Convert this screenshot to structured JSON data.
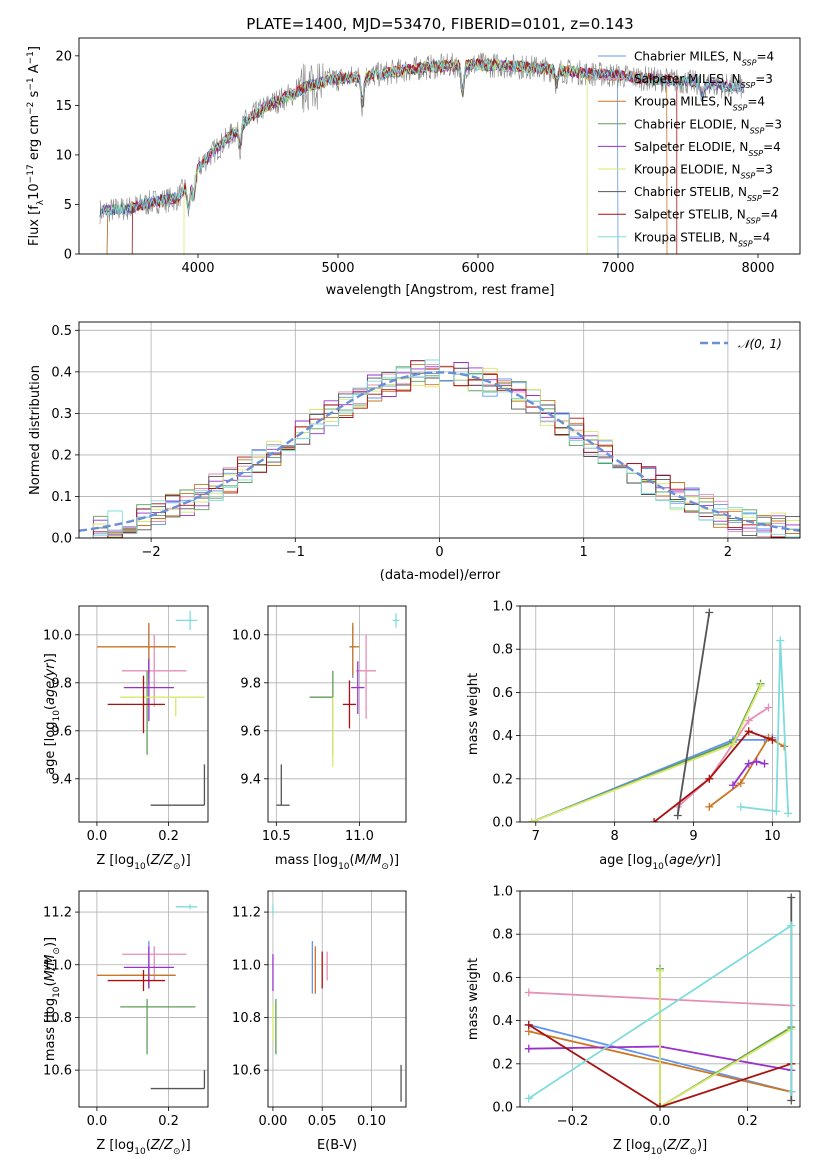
{
  "colors": {
    "chabrier_miles": "#6495ed",
    "salpeter_miles": "#e58fb7",
    "kroupa_miles": "#cc7722",
    "chabrier_elodie": "#5f9e57",
    "salpeter_elodie": "#9932cc",
    "kroupa_elodie": "#d7e86a",
    "chabrier_stelib": "#555555",
    "salpeter_stelib": "#aa1111",
    "kroupa_stelib": "#7fdcdc",
    "normal": "#6a8fd6",
    "grid": "#b0b0b0"
  },
  "chart_data": [
    {
      "id": "spectrum",
      "type": "line",
      "title": "PLATE=1400, MJD=53470, FIBERID=0101, z=0.143",
      "xlabel": "wavelength [Angstrom, rest frame]",
      "ylabel": "Flux [f_λ10^-17 erg cm^-2 s^-1 A^-1]",
      "xlim": [
        3150,
        8300
      ],
      "ylim": [
        0,
        21.8
      ],
      "xticks": [
        4000,
        5000,
        6000,
        7000,
        8000
      ],
      "yticks": [
        0,
        5,
        10,
        15,
        20
      ],
      "grid": false,
      "legend_position": "top-right",
      "legend": [
        {
          "name": "Chabrier MILES",
          "nssp": "4",
          "color": "chabrier_miles"
        },
        {
          "name": "Salpeter MILES",
          "nssp": "3",
          "color": "salpeter_miles"
        },
        {
          "name": "Kroupa MILES",
          "nssp": "4",
          "color": "kroupa_miles"
        },
        {
          "name": "Chabrier ELODIE",
          "nssp": "3",
          "color": "chabrier_elodie"
        },
        {
          "name": "Salpeter ELODIE",
          "nssp": "4",
          "color": "salpeter_elodie"
        },
        {
          "name": "Kroupa ELODIE",
          "nssp": "3",
          "color": "kroupa_elodie"
        },
        {
          "name": "Chabrier STELIB",
          "nssp": "2",
          "color": "chabrier_stelib"
        },
        {
          "name": "Salpeter STELIB",
          "nssp": "4",
          "color": "salpeter_stelib"
        },
        {
          "name": "Kroupa STELIB",
          "nssp": "4",
          "color": "kroupa_stelib"
        }
      ],
      "continuum": {
        "x": [
          3300,
          3500,
          3700,
          3850,
          3950,
          4050,
          4200,
          4350,
          4500,
          4650,
          4800,
          4950,
          5100,
          5250,
          5400,
          5600,
          5800,
          6000,
          6200,
          6400,
          6600,
          6800,
          7000,
          7200,
          7400,
          7600,
          7800,
          7900
        ],
        "y": [
          4.3,
          4.6,
          5.3,
          5.6,
          7.5,
          9.5,
          11.5,
          13.5,
          15.0,
          16.0,
          17.0,
          17.6,
          17.8,
          18.0,
          18.4,
          18.8,
          19.0,
          19.1,
          19.0,
          18.8,
          18.5,
          18.2,
          18.0,
          17.7,
          17.5,
          17.2,
          16.9,
          16.8
        ]
      },
      "absorption_features": [
        {
          "x": 5175,
          "depth": 3
        },
        {
          "x": 5890,
          "depth": 3
        },
        {
          "x": 4300,
          "depth": 2
        },
        {
          "x": 3933,
          "depth": 3
        },
        {
          "x": 3968,
          "depth": 2.5
        },
        {
          "x": 6563,
          "depth": 1.5
        },
        {
          "x": 7600,
          "depth": 1.5
        }
      ],
      "model_edges": [
        {
          "series": "salpeter_stelib",
          "start": 3530,
          "end": 7420
        },
        {
          "series": "kroupa_elodie",
          "start": 3900,
          "end": 6780
        },
        {
          "series": "chabrier_miles",
          "start": 3350,
          "end": 7000
        },
        {
          "series": "kroupa_miles",
          "start": 3350,
          "end": 7350
        }
      ]
    },
    {
      "id": "residuals",
      "type": "histogram",
      "xlabel": "(data-model)/error",
      "ylabel": "Normed distribution",
      "xlim": [
        -2.5,
        2.5
      ],
      "ylim": [
        0,
        0.52
      ],
      "xticks": [
        -2,
        -1,
        0,
        1,
        2
      ],
      "yticks": [
        0.0,
        0.1,
        0.2,
        0.3,
        0.4,
        0.5
      ],
      "grid": true,
      "legend_position": "top-right",
      "legend": [
        {
          "name": "𝒩(0, 1)",
          "color": "normal",
          "style": "dashed"
        }
      ],
      "bin_width": 0.1
    },
    {
      "id": "age-z",
      "type": "errorbar",
      "xlabel": "Z [log10(Z/Z⊙)]",
      "ylabel": "age  [log10(age/yr)]",
      "xlim": [
        -0.05,
        0.31
      ],
      "ylim": [
        9.22,
        10.12
      ],
      "xticks": [
        0.0,
        0.2
      ],
      "yticks": [
        9.4,
        9.6,
        9.8,
        10.0
      ],
      "grid": true,
      "points": [
        {
          "series": "chabrier_miles",
          "x": 0.145,
          "xerr": [
            0.08,
            0.07
          ],
          "y": 9.95,
          "yerr": [
            0.13,
            0.09
          ]
        },
        {
          "series": "salpeter_miles",
          "x": 0.16,
          "xerr": [
            0.09,
            0.09
          ],
          "y": 9.85,
          "yerr": [
            0.15,
            0.15
          ]
        },
        {
          "series": "kroupa_miles",
          "x": 0.145,
          "xerr": [
            0.145,
            0.075
          ],
          "y": 9.95,
          "yerr": [
            0.15,
            0.1
          ]
        },
        {
          "series": "chabrier_elodie",
          "x": 0.14,
          "xerr": [
            0.0,
            0.0
          ],
          "y": 9.74,
          "yerr": [
            0.24,
            0.11
          ]
        },
        {
          "series": "salpeter_elodie",
          "x": 0.145,
          "xerr": [
            0.07,
            0.07
          ],
          "y": 9.78,
          "yerr": [
            0.14,
            0.12
          ]
        },
        {
          "series": "kroupa_elodie",
          "x": 0.22,
          "xerr": [
            0.155,
            0.08
          ],
          "y": 9.74,
          "yerr": [
            0.08,
            0.0
          ]
        },
        {
          "series": "chabrier_stelib",
          "x": 0.3,
          "xerr": [
            0.15,
            0.0
          ],
          "y": 9.29,
          "yerr": [
            0.0,
            0.17
          ]
        },
        {
          "series": "salpeter_stelib",
          "x": 0.13,
          "xerr": [
            0.1,
            0.06
          ],
          "y": 9.71,
          "yerr": [
            0.12,
            0.12
          ]
        },
        {
          "series": "kroupa_stelib",
          "x": 0.26,
          "xerr": [
            0.04,
            0.02
          ],
          "y": 10.06,
          "yerr": [
            0.04,
            0.04
          ]
        }
      ]
    },
    {
      "id": "age-mass",
      "type": "errorbar",
      "xlabel": "mass [log10(M/M⊙)]",
      "ylabel": "",
      "xlim": [
        10.45,
        11.28
      ],
      "ylim": [
        9.22,
        10.12
      ],
      "xticks": [
        10.5,
        11.0
      ],
      "yticks": [
        9.4,
        9.6,
        9.8,
        10.0
      ],
      "grid": true,
      "points": [
        {
          "series": "chabrier_miles",
          "x": 10.96,
          "xerr": [
            0.02,
            0.02
          ],
          "y": 9.95,
          "yerr": [
            0.13,
            0.09
          ]
        },
        {
          "series": "salpeter_miles",
          "x": 11.04,
          "xerr": [
            0.06,
            0.06
          ],
          "y": 9.85,
          "yerr": [
            0.2,
            0.15
          ]
        },
        {
          "series": "kroupa_miles",
          "x": 10.96,
          "xerr": [
            0.02,
            0.04
          ],
          "y": 9.95,
          "yerr": [
            0.12,
            0.1
          ]
        },
        {
          "series": "chabrier_elodie",
          "x": 10.84,
          "xerr": [
            0.14,
            0.0
          ],
          "y": 9.74,
          "yerr": [
            0.24,
            0.11
          ]
        },
        {
          "series": "salpeter_elodie",
          "x": 10.99,
          "xerr": [
            0.04,
            0.04
          ],
          "y": 9.78,
          "yerr": [
            0.11,
            0.11
          ]
        },
        {
          "series": "kroupa_elodie",
          "x": 10.84,
          "xerr": [
            0.0,
            0.0
          ],
          "y": 9.74,
          "yerr": [
            0.29,
            0.0
          ]
        },
        {
          "series": "chabrier_stelib",
          "x": 10.53,
          "xerr": [
            0.03,
            0.05
          ],
          "y": 9.29,
          "yerr": [
            0.0,
            0.17
          ]
        },
        {
          "series": "salpeter_stelib",
          "x": 10.94,
          "xerr": [
            0.04,
            0.04
          ],
          "y": 9.71,
          "yerr": [
            0.1,
            0.1
          ]
        },
        {
          "series": "kroupa_stelib",
          "x": 11.22,
          "xerr": [
            0.02,
            0.02
          ],
          "y": 10.06,
          "yerr": [
            0.03,
            0.03
          ]
        }
      ]
    },
    {
      "id": "weight-age",
      "type": "line",
      "xlabel": "age  [log10(age/yr)]",
      "ylabel": "mass weight",
      "xlim": [
        6.8,
        10.35
      ],
      "ylim": [
        0,
        1.0
      ],
      "xticks": [
        7,
        8,
        9,
        10
      ],
      "yticks": [
        0.0,
        0.2,
        0.4,
        0.6,
        0.8,
        1.0
      ],
      "grid": true,
      "series": [
        {
          "series": "chabrier_miles",
          "x": [
            6.95,
            9.5,
            9.9,
            10.0
          ],
          "y": [
            0.0,
            0.38,
            0.38,
            0.39
          ]
        },
        {
          "series": "salpeter_miles",
          "x": [
            8.8,
            9.2,
            9.7,
            9.95
          ],
          "y": [
            0.07,
            0.2,
            0.47,
            0.53
          ]
        },
        {
          "series": "kroupa_miles",
          "x": [
            9.2,
            9.6,
            9.95,
            10.15
          ],
          "y": [
            0.07,
            0.18,
            0.39,
            0.35
          ]
        },
        {
          "series": "chabrier_elodie",
          "x": [
            6.95,
            9.5,
            9.85
          ],
          "y": [
            0.0,
            0.37,
            0.64
          ]
        },
        {
          "series": "salpeter_elodie",
          "x": [
            9.5,
            9.7,
            9.8,
            9.9
          ],
          "y": [
            0.17,
            0.27,
            0.28,
            0.27
          ]
        },
        {
          "series": "kroupa_elodie",
          "x": [
            6.95,
            9.5,
            9.85
          ],
          "y": [
            0.0,
            0.36,
            0.63
          ]
        },
        {
          "series": "chabrier_stelib",
          "x": [
            8.8,
            9.2
          ],
          "y": [
            0.03,
            0.97
          ]
        },
        {
          "series": "salpeter_stelib",
          "x": [
            8.5,
            9.2,
            9.7,
            10.0
          ],
          "y": [
            0.0,
            0.2,
            0.42,
            0.38
          ]
        },
        {
          "series": "kroupa_stelib",
          "x": [
            9.6,
            10.05,
            10.1,
            10.2
          ],
          "y": [
            0.07,
            0.05,
            0.84,
            0.04
          ]
        }
      ]
    },
    {
      "id": "mass-z",
      "type": "errorbar",
      "xlabel": "Z [log10(Z/Z⊙)]",
      "ylabel": "mass [log10(M/M⊙)]",
      "xlim": [
        -0.05,
        0.31
      ],
      "ylim": [
        10.46,
        11.28
      ],
      "xticks": [
        0.0,
        0.2
      ],
      "yticks": [
        10.6,
        10.8,
        11.0,
        11.2
      ],
      "grid": true,
      "points": [
        {
          "series": "chabrier_miles",
          "x": 0.145,
          "xerr": [
            0.08,
            0.07
          ],
          "y": 10.96,
          "yerr": [
            0.05,
            0.13
          ]
        },
        {
          "series": "salpeter_miles",
          "x": 0.16,
          "xerr": [
            0.09,
            0.09
          ],
          "y": 11.04,
          "yerr": [
            0.1,
            0.03
          ]
        },
        {
          "series": "kroupa_miles",
          "x": 0.145,
          "xerr": [
            0.145,
            0.075
          ],
          "y": 10.96,
          "yerr": [
            0.04,
            0.04
          ]
        },
        {
          "series": "chabrier_elodie",
          "x": 0.14,
          "xerr": [
            0.075,
            0.135
          ],
          "y": 10.84,
          "yerr": [
            0.18,
            0.03
          ]
        },
        {
          "series": "salpeter_elodie",
          "x": 0.145,
          "xerr": [
            0.07,
            0.07
          ],
          "y": 10.99,
          "yerr": [
            0.08,
            0.08
          ]
        },
        {
          "series": "kroupa_elodie",
          "x": 0.22,
          "xerr": [
            0.0,
            0.0
          ],
          "y": 10.84,
          "yerr": [
            0.0,
            0.0
          ]
        },
        {
          "series": "chabrier_stelib",
          "x": 0.3,
          "xerr": [
            0.15,
            0.0
          ],
          "y": 10.53,
          "yerr": [
            0.0,
            0.07
          ]
        },
        {
          "series": "salpeter_stelib",
          "x": 0.13,
          "xerr": [
            0.1,
            0.06
          ],
          "y": 10.94,
          "yerr": [
            0.04,
            0.04
          ]
        },
        {
          "series": "kroupa_stelib",
          "x": 0.26,
          "xerr": [
            0.04,
            0.02
          ],
          "y": 11.22,
          "yerr": [
            0.01,
            0.01
          ]
        }
      ]
    },
    {
      "id": "mass-ebv",
      "type": "errorbar",
      "xlabel": "E(B-V)",
      "ylabel": "",
      "xlim": [
        -0.005,
        0.135
      ],
      "ylim": [
        10.46,
        11.28
      ],
      "xticks": [
        0.0,
        0.05,
        0.1
      ],
      "yticks": [
        10.6,
        10.8,
        11.0,
        11.2
      ],
      "grid": true,
      "points": [
        {
          "series": "chabrier_miles",
          "x": 0.04,
          "xerr": [
            0,
            0
          ],
          "y": 10.97,
          "yerr": [
            0.08,
            0.12
          ]
        },
        {
          "series": "salpeter_miles",
          "x": 0.055,
          "xerr": [
            0,
            0
          ],
          "y": 11.02,
          "yerr": [
            0.08,
            0.03
          ]
        },
        {
          "series": "kroupa_miles",
          "x": 0.043,
          "xerr": [
            0,
            0
          ],
          "y": 10.97,
          "yerr": [
            0.08,
            0.1
          ]
        },
        {
          "series": "chabrier_elodie",
          "x": 0.003,
          "xerr": [
            0,
            0
          ],
          "y": 10.78,
          "yerr": [
            0.12,
            0.09
          ]
        },
        {
          "series": "salpeter_elodie",
          "x": 0.0,
          "xerr": [
            0,
            0
          ],
          "y": 10.97,
          "yerr": [
            0.07,
            0.07
          ]
        },
        {
          "series": "kroupa_elodie",
          "x": 0.0,
          "xerr": [
            0,
            0
          ],
          "y": 10.78,
          "yerr": [
            0.07,
            0.07
          ]
        },
        {
          "series": "chabrier_stelib",
          "x": 0.13,
          "xerr": [
            0,
            0
          ],
          "y": 10.55,
          "yerr": [
            0.07,
            0.07
          ]
        },
        {
          "series": "salpeter_stelib",
          "x": 0.05,
          "xerr": [
            0,
            0
          ],
          "y": 10.98,
          "yerr": [
            0.07,
            0.07
          ]
        },
        {
          "series": "kroupa_stelib",
          "x": 0.0,
          "xerr": [
            0,
            0
          ],
          "y": 11.21,
          "yerr": [
            0.02,
            0.02
          ]
        }
      ]
    },
    {
      "id": "weight-z",
      "type": "line",
      "xlabel": "Z [log10(Z/Z⊙)]",
      "ylabel": "mass weight",
      "xlim": [
        -0.32,
        0.32
      ],
      "ylim": [
        0,
        1.0
      ],
      "xticks": [
        -0.2,
        0.0,
        0.2
      ],
      "yticks": [
        0.0,
        0.2,
        0.4,
        0.6,
        0.8,
        1.0
      ],
      "grid": true,
      "series": [
        {
          "series": "chabrier_miles",
          "x": [
            -0.3,
            0.3
          ],
          "y": [
            0.38,
            0.07
          ]
        },
        {
          "series": "salpeter_miles",
          "x": [
            -0.3,
            0.3
          ],
          "y": [
            0.53,
            0.47
          ]
        },
        {
          "series": "kroupa_miles",
          "x": [
            -0.3,
            0.3
          ],
          "y": [
            0.35,
            0.07
          ]
        },
        {
          "series": "chabrier_elodie",
          "x": [
            0.0,
            0.0,
            0.3
          ],
          "y": [
            0.64,
            0.0,
            0.37
          ]
        },
        {
          "series": "salpeter_elodie",
          "x": [
            -0.3,
            0.0,
            0.3
          ],
          "y": [
            0.27,
            0.28,
            0.17
          ]
        },
        {
          "series": "kroupa_elodie",
          "x": [
            0.0,
            0.0,
            0.3
          ],
          "y": [
            0.63,
            0.0,
            0.36
          ]
        },
        {
          "series": "chabrier_stelib",
          "x": [
            0.3,
            0.3
          ],
          "y": [
            0.03,
            0.97
          ]
        },
        {
          "series": "salpeter_stelib",
          "x": [
            -0.3,
            0.0,
            0.3
          ],
          "y": [
            0.38,
            0.0,
            0.2
          ]
        },
        {
          "series": "kroupa_stelib",
          "x": [
            -0.3,
            0.3,
            0.3
          ],
          "y": [
            0.04,
            0.84,
            0.07
          ]
        }
      ]
    }
  ]
}
